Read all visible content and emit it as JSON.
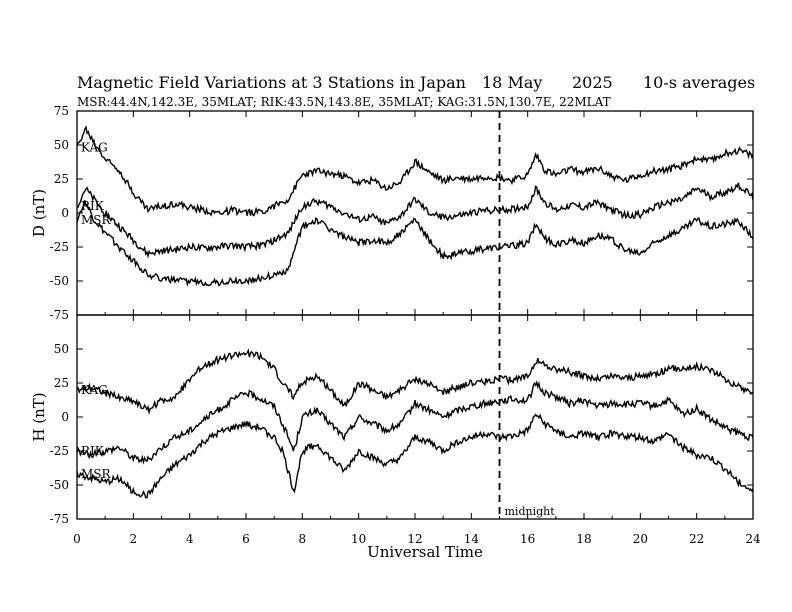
{
  "header": {
    "title": "Magnetic Field Variations at 3 Stations in Japan",
    "date": "18 May",
    "year": "2025",
    "averaging": "10-s averages",
    "stations_line": "MSR:44.4N,142.3E, 35MLAT;  RIK:43.5N,143.8E, 35MLAT;  KAG:31.5N,130.7E, 22MLAT"
  },
  "chart_data": [
    {
      "type": "line",
      "panel": "D",
      "ylabel": "D (nT)",
      "xlabel": "Universal Time",
      "xlim": [
        0,
        24
      ],
      "ylim": [
        -75,
        75
      ],
      "yticks": [
        75,
        50,
        25,
        0,
        -25,
        -50,
        -75
      ],
      "xticks": [
        0,
        2,
        4,
        6,
        8,
        10,
        12,
        14,
        16,
        18,
        20,
        22,
        24
      ],
      "grid": false,
      "series": [
        {
          "name": "KAG",
          "x": [
            0,
            0.3,
            0.6,
            1,
            1.5,
            2,
            2.5,
            3,
            3.5,
            4,
            4.5,
            5,
            5.5,
            6,
            6.5,
            7,
            7.5,
            8,
            8.5,
            9,
            9.5,
            10,
            10.5,
            11,
            11.5,
            12,
            12.5,
            13,
            13.5,
            14,
            14.5,
            15,
            15.5,
            16,
            16.3,
            16.6,
            17,
            17.5,
            18,
            18.5,
            19,
            19.5,
            20,
            20.5,
            21,
            21.5,
            22,
            22.5,
            23,
            23.5,
            24
          ],
          "y": [
            48,
            62,
            52,
            40,
            32,
            15,
            3,
            5,
            7,
            4,
            2,
            0,
            2,
            0,
            1,
            5,
            10,
            28,
            31,
            29,
            27,
            22,
            24,
            18,
            23,
            38,
            30,
            24,
            26,
            25,
            27,
            26,
            24,
            28,
            43,
            32,
            28,
            32,
            30,
            33,
            27,
            24,
            28,
            31,
            32,
            35,
            40,
            38,
            44,
            46,
            42
          ]
        },
        {
          "name": "RIK",
          "x": [
            0,
            0.3,
            0.6,
            1,
            1.5,
            2,
            2.5,
            3,
            3.5,
            4,
            4.5,
            5,
            5.5,
            6,
            6.5,
            7,
            7.5,
            8,
            8.5,
            9,
            9.5,
            10,
            10.5,
            11,
            11.5,
            12,
            12.5,
            13,
            13.5,
            14,
            14.5,
            15,
            15.5,
            16,
            16.3,
            16.6,
            17,
            17.5,
            18,
            18.5,
            19,
            19.5,
            20,
            20.5,
            21,
            21.5,
            22,
            22.5,
            23,
            23.5,
            24
          ],
          "y": [
            5,
            18,
            10,
            0,
            -10,
            -20,
            -30,
            -28,
            -27,
            -25,
            -26,
            -25,
            -24,
            -25,
            -24,
            -20,
            -15,
            5,
            9,
            5,
            0,
            -5,
            -3,
            -8,
            -2,
            10,
            0,
            -3,
            -2,
            0,
            2,
            2,
            3,
            5,
            18,
            8,
            2,
            6,
            4,
            8,
            2,
            -2,
            -1,
            4,
            8,
            10,
            18,
            12,
            15,
            20,
            12
          ]
        },
        {
          "name": "MSR",
          "x": [
            0,
            0.3,
            0.6,
            1,
            1.5,
            2,
            2.5,
            3,
            3.5,
            4,
            4.5,
            5,
            5.5,
            6,
            6.5,
            7,
            7.5,
            8,
            8.5,
            9,
            9.5,
            10,
            10.5,
            11,
            11.5,
            12,
            12.5,
            13,
            13.5,
            14,
            14.5,
            15,
            15.5,
            16,
            16.3,
            16.6,
            17,
            17.5,
            18,
            18.5,
            19,
            19.5,
            20,
            20.5,
            21,
            21.5,
            22,
            22.5,
            23,
            23.5,
            24
          ],
          "y": [
            -5,
            8,
            -5,
            -15,
            -25,
            -35,
            -45,
            -48,
            -50,
            -50,
            -51,
            -51,
            -50,
            -50,
            -48,
            -46,
            -42,
            -10,
            -5,
            -12,
            -18,
            -22,
            -20,
            -22,
            -15,
            -5,
            -20,
            -32,
            -30,
            -28,
            -26,
            -25,
            -24,
            -22,
            -8,
            -18,
            -24,
            -20,
            -22,
            -16,
            -20,
            -28,
            -30,
            -22,
            -16,
            -12,
            -5,
            -10,
            -8,
            -6,
            -18
          ]
        }
      ]
    },
    {
      "type": "line",
      "panel": "H",
      "ylabel": "H (nT)",
      "xlabel": "Universal Time",
      "xlim": [
        0,
        24
      ],
      "ylim": [
        -75,
        75
      ],
      "yticks": [
        75,
        50,
        25,
        0,
        -25,
        -50,
        -75
      ],
      "xticks": [
        0,
        2,
        4,
        6,
        8,
        10,
        12,
        14,
        16,
        18,
        20,
        22,
        24
      ],
      "grid": false,
      "series": [
        {
          "name": "KAG",
          "x": [
            0,
            0.5,
            1,
            1.5,
            2,
            2.5,
            3,
            3.5,
            4,
            4.5,
            5,
            5.5,
            6,
            6.5,
            7,
            7.3,
            7.7,
            8,
            8.5,
            9,
            9.5,
            10,
            10.5,
            11,
            11.5,
            12,
            12.5,
            13,
            13.5,
            14,
            14.5,
            15,
            15.5,
            16,
            16.3,
            16.6,
            17,
            17.5,
            18,
            18.5,
            19,
            19.5,
            20,
            20.5,
            21,
            21.5,
            22,
            22.5,
            23,
            23.5,
            24
          ],
          "y": [
            20,
            22,
            18,
            14,
            12,
            5,
            12,
            15,
            28,
            38,
            42,
            45,
            47,
            45,
            35,
            25,
            15,
            26,
            30,
            20,
            8,
            25,
            20,
            15,
            20,
            28,
            24,
            18,
            22,
            25,
            26,
            28,
            27,
            30,
            42,
            38,
            35,
            33,
            30,
            28,
            30,
            29,
            30,
            32,
            35,
            36,
            37,
            35,
            28,
            22,
            18
          ]
        },
        {
          "name": "RIK",
          "x": [
            0,
            0.5,
            1,
            1.5,
            2,
            2.5,
            3,
            3.5,
            4,
            4.5,
            5,
            5.5,
            6,
            6.5,
            7,
            7.3,
            7.7,
            8,
            8.5,
            9,
            9.5,
            10,
            10.5,
            11,
            11.5,
            12,
            12.5,
            13,
            13.5,
            14,
            14.5,
            15,
            15.5,
            16,
            16.3,
            16.6,
            17,
            17.5,
            18,
            18.5,
            19,
            19.5,
            20,
            20.5,
            21,
            21.5,
            22,
            22.5,
            23,
            23.5,
            24
          ],
          "y": [
            -25,
            -28,
            -25,
            -22,
            -30,
            -32,
            -22,
            -15,
            -10,
            -2,
            5,
            12,
            18,
            14,
            8,
            -5,
            -25,
            0,
            5,
            -5,
            -15,
            0,
            -5,
            -10,
            -5,
            10,
            5,
            0,
            5,
            8,
            10,
            12,
            13,
            12,
            25,
            18,
            15,
            10,
            12,
            8,
            10,
            9,
            10,
            8,
            12,
            2,
            6,
            -2,
            -8,
            -12,
            -16
          ]
        },
        {
          "name": "MSR",
          "x": [
            0,
            0.5,
            1,
            1.5,
            2,
            2.5,
            3,
            3.5,
            4,
            4.5,
            5,
            5.5,
            6,
            6.5,
            7,
            7.3,
            7.7,
            8,
            8.5,
            9,
            9.5,
            10,
            10.5,
            11,
            11.5,
            12,
            12.5,
            13,
            13.5,
            14,
            14.5,
            15,
            15.5,
            16,
            16.3,
            16.6,
            17,
            17.5,
            18,
            18.5,
            19,
            19.5,
            20,
            20.5,
            21,
            21.5,
            22,
            22.5,
            23,
            23.5,
            24
          ],
          "y": [
            -42,
            -45,
            -48,
            -45,
            -55,
            -58,
            -45,
            -35,
            -28,
            -18,
            -12,
            -8,
            -5,
            -8,
            -15,
            -25,
            -55,
            -25,
            -20,
            -30,
            -40,
            -25,
            -30,
            -35,
            -30,
            -15,
            -18,
            -25,
            -18,
            -15,
            -12,
            -15,
            -14,
            -10,
            2,
            -5,
            -10,
            -15,
            -12,
            -15,
            -12,
            -14,
            -15,
            -18,
            -12,
            -22,
            -28,
            -30,
            -38,
            -48,
            -55
          ]
        }
      ]
    }
  ],
  "annotations": {
    "midnight_label": "midnight",
    "midnight_ut": 15
  }
}
